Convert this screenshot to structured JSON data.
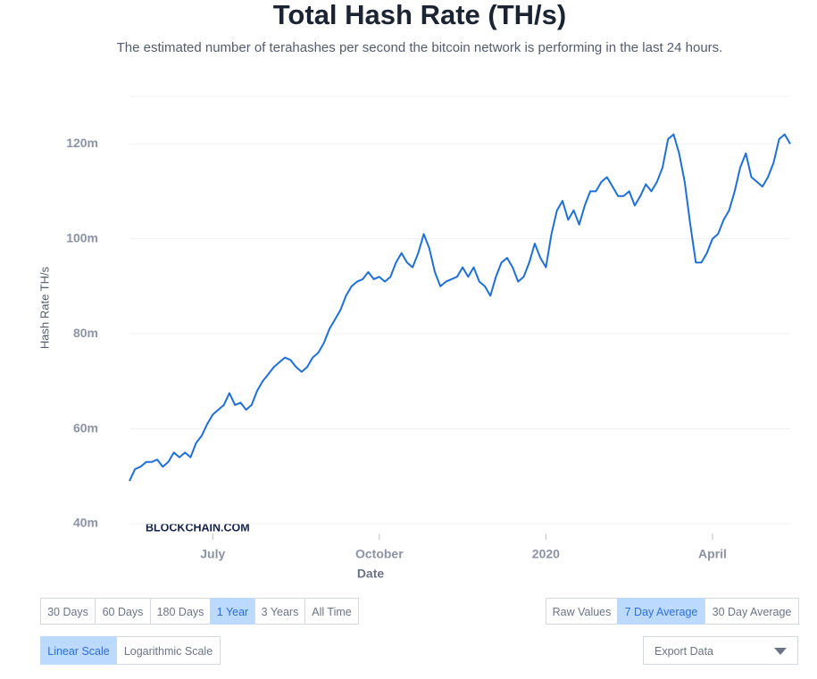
{
  "chart_data": {
    "type": "line",
    "title": "Total Hash Rate (TH/s)",
    "subtitle": "The estimated number of terahashes per second the bitcoin network is performing in the last 24 hours.",
    "x_label": "Date",
    "y_label": "Hash Rate TH/s",
    "watermark": "BLOCKCHAIN.COM",
    "categories": [
      null,
      null,
      null,
      null,
      null,
      null,
      null,
      null,
      null,
      null,
      null,
      null,
      null,
      null,
      null,
      "July",
      null,
      null,
      null,
      null,
      null,
      null,
      null,
      null,
      null,
      null,
      null,
      null,
      null,
      null,
      null,
      null,
      null,
      null,
      null,
      null,
      null,
      null,
      null,
      null,
      null,
      null,
      null,
      null,
      null,
      "October",
      null,
      null,
      null,
      null,
      null,
      null,
      null,
      null,
      null,
      null,
      null,
      null,
      null,
      null,
      null,
      null,
      null,
      null,
      null,
      null,
      null,
      null,
      null,
      null,
      null,
      null,
      null,
      null,
      null,
      "2020",
      null,
      null,
      null,
      null,
      null,
      null,
      null,
      null,
      null,
      null,
      null,
      null,
      null,
      null,
      null,
      null,
      null,
      null,
      null,
      null,
      null,
      null,
      null,
      null,
      null,
      null,
      null,
      null,
      null,
      "April",
      null,
      null,
      null,
      null,
      null,
      null,
      null,
      null,
      null,
      null,
      null,
      null,
      null,
      null
    ],
    "series": [
      {
        "name": "Hash Rate TH/s",
        "color": "#1f6fd6",
        "values": [
          49,
          51.5,
          52,
          53,
          53,
          53.5,
          52,
          53,
          55,
          54,
          55,
          54,
          57,
          58.5,
          61,
          63,
          64,
          65,
          67.5,
          65,
          65.5,
          64,
          65,
          68,
          70,
          71.5,
          73,
          74,
          75,
          74.5,
          73,
          72,
          73,
          75,
          76,
          78,
          81,
          83,
          85,
          88,
          90,
          91,
          91.5,
          93,
          91.5,
          92,
          91,
          92,
          95,
          97,
          95,
          94,
          97,
          101,
          98,
          93,
          90,
          91,
          91.5,
          92,
          94,
          92,
          94,
          91,
          90,
          88,
          92,
          95,
          96,
          94,
          91,
          92,
          95,
          99,
          96,
          94,
          101,
          106,
          108,
          104,
          106,
          103,
          107,
          110,
          110,
          112,
          113,
          111,
          109,
          109,
          110,
          107,
          109,
          111.5,
          110,
          112,
          115,
          121,
          122,
          118,
          112,
          103,
          95,
          95,
          97,
          100,
          101,
          104,
          106,
          110,
          115,
          118,
          113,
          112,
          111,
          113,
          116,
          121,
          122,
          120
        ]
      }
    ],
    "ylim": [
      40,
      130
    ],
    "yticks": [
      {
        "value": 40,
        "label": "40m"
      },
      {
        "value": 60,
        "label": "60m"
      },
      {
        "value": 80,
        "label": "80m"
      },
      {
        "value": 100,
        "label": "100m"
      },
      {
        "value": 120,
        "label": "120m"
      }
    ],
    "grid": true
  },
  "controls": {
    "timespan": [
      "30 Days",
      "60 Days",
      "180 Days",
      "1 Year",
      "3 Years",
      "All Time"
    ],
    "timespan_active": 3,
    "average": [
      "Raw Values",
      "7 Day Average",
      "30 Day Average"
    ],
    "average_active": 1,
    "scale": [
      "Linear Scale",
      "Logarithmic Scale"
    ],
    "scale_active": 0,
    "export": "Export Data"
  }
}
